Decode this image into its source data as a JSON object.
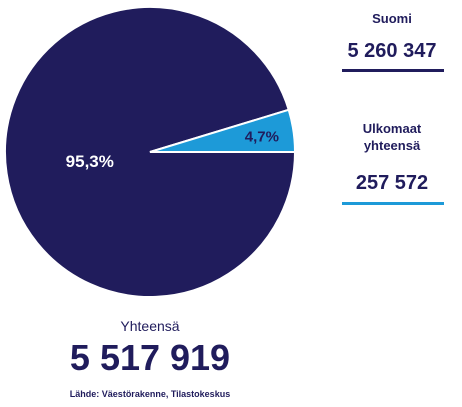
{
  "chart_data": {
    "type": "pie",
    "categories": [
      "Suomi",
      "Ulkomaat yhteensä"
    ],
    "values": [
      95.3,
      4.7
    ],
    "value_labels": [
      "95,3%",
      "4,7%"
    ],
    "colors": [
      "#201c5c",
      "#1d9ad8"
    ],
    "counts": [
      "5 260 347",
      "257 572"
    ],
    "total_title": "Yhteensä",
    "total": "5 517 919",
    "source": "Lähde: Väestörakenne, Tilastokeskus"
  }
}
